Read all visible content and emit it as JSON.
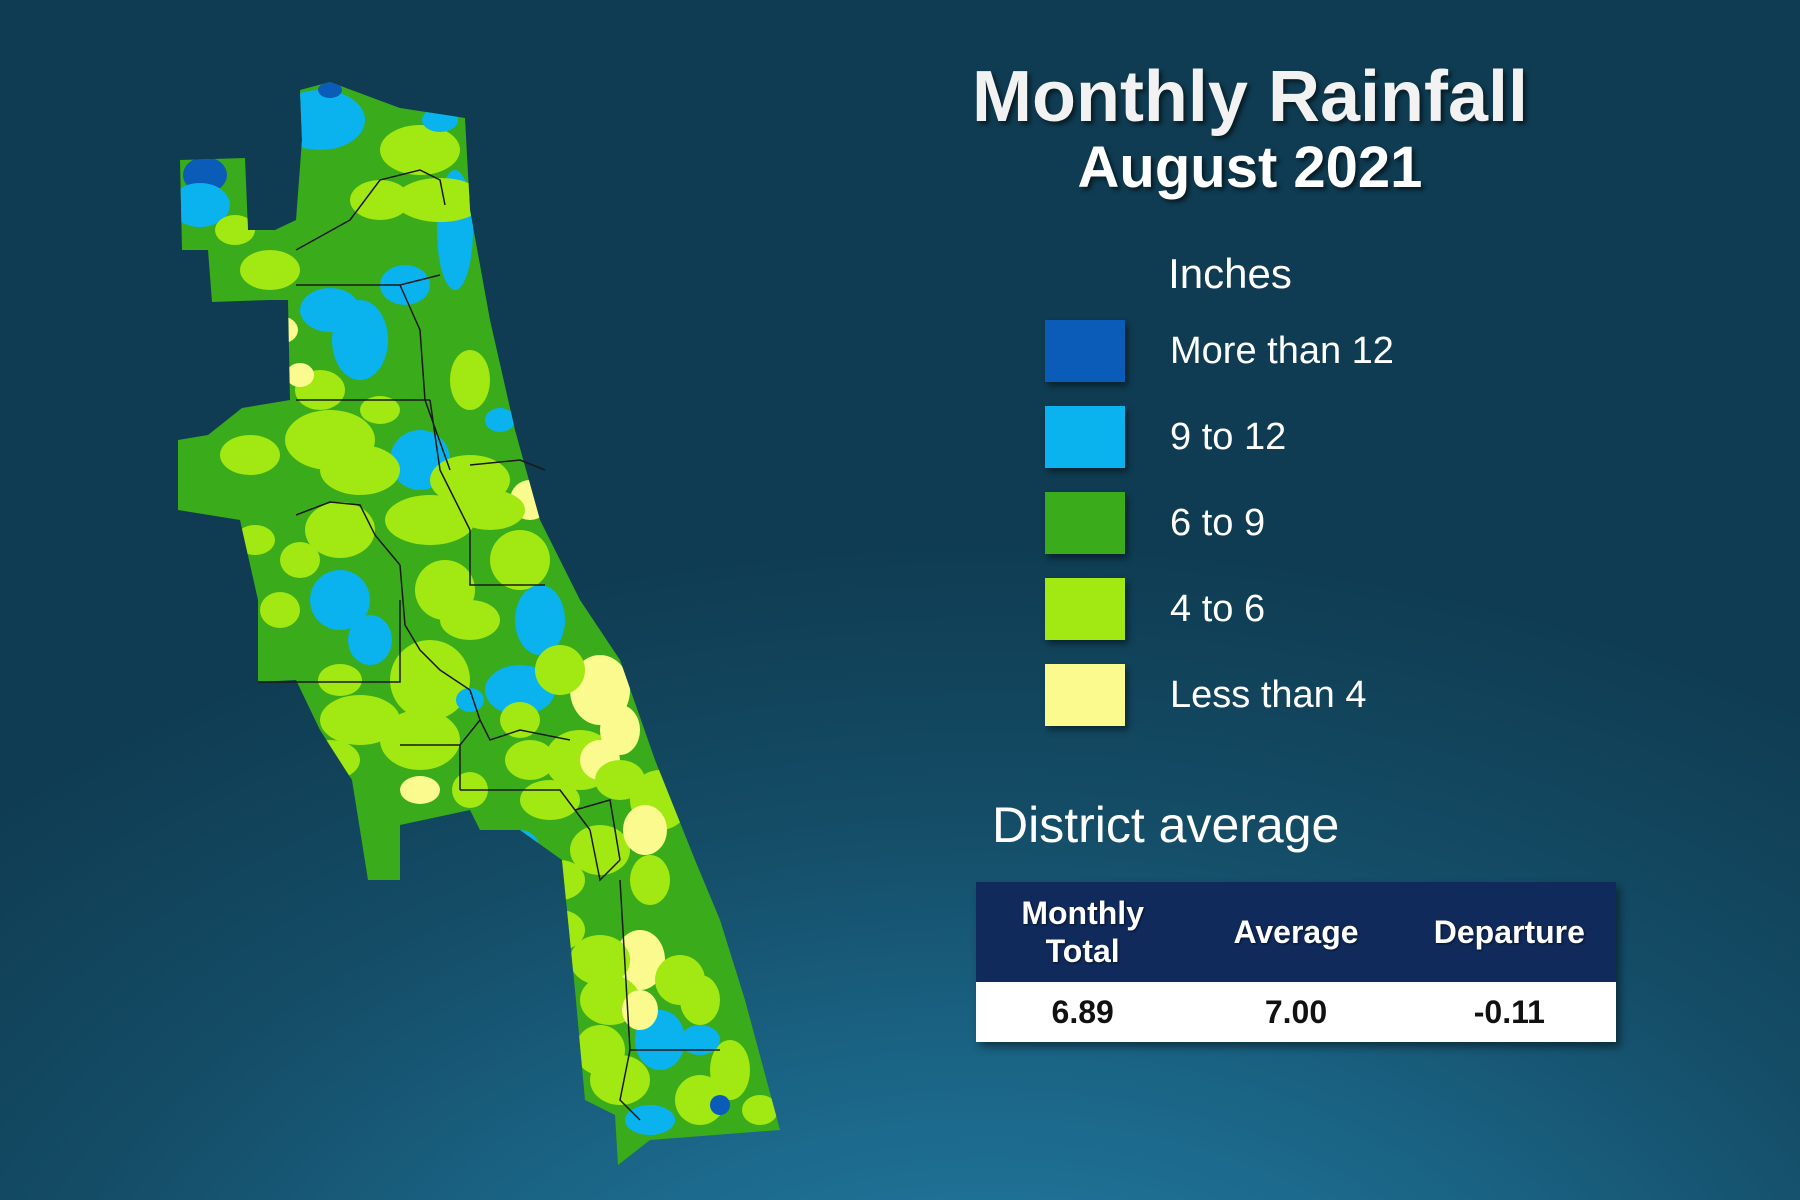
{
  "title": "Monthly Rainfall",
  "subtitle": "August 2021",
  "legend": {
    "title": "Inches",
    "items": [
      {
        "label": "More than 12",
        "color": "#0a5cb8"
      },
      {
        "label": "9 to 12",
        "color": "#0ab2ee"
      },
      {
        "label": "6 to 9",
        "color": "#3aab1a"
      },
      {
        "label": "4 to 6",
        "color": "#a2e812"
      },
      {
        "label": "Less than 4",
        "color": "#fbfa8e"
      }
    ]
  },
  "district": {
    "title": "District average",
    "columns": [
      "Monthly\nTotal",
      "Average",
      "Departure"
    ],
    "values": [
      "6.89",
      "7.00",
      "-0.11"
    ]
  },
  "map": {
    "name": "district-rainfall-map",
    "base_color": "#3aab1a",
    "border_color": "#1a1a1a"
  }
}
